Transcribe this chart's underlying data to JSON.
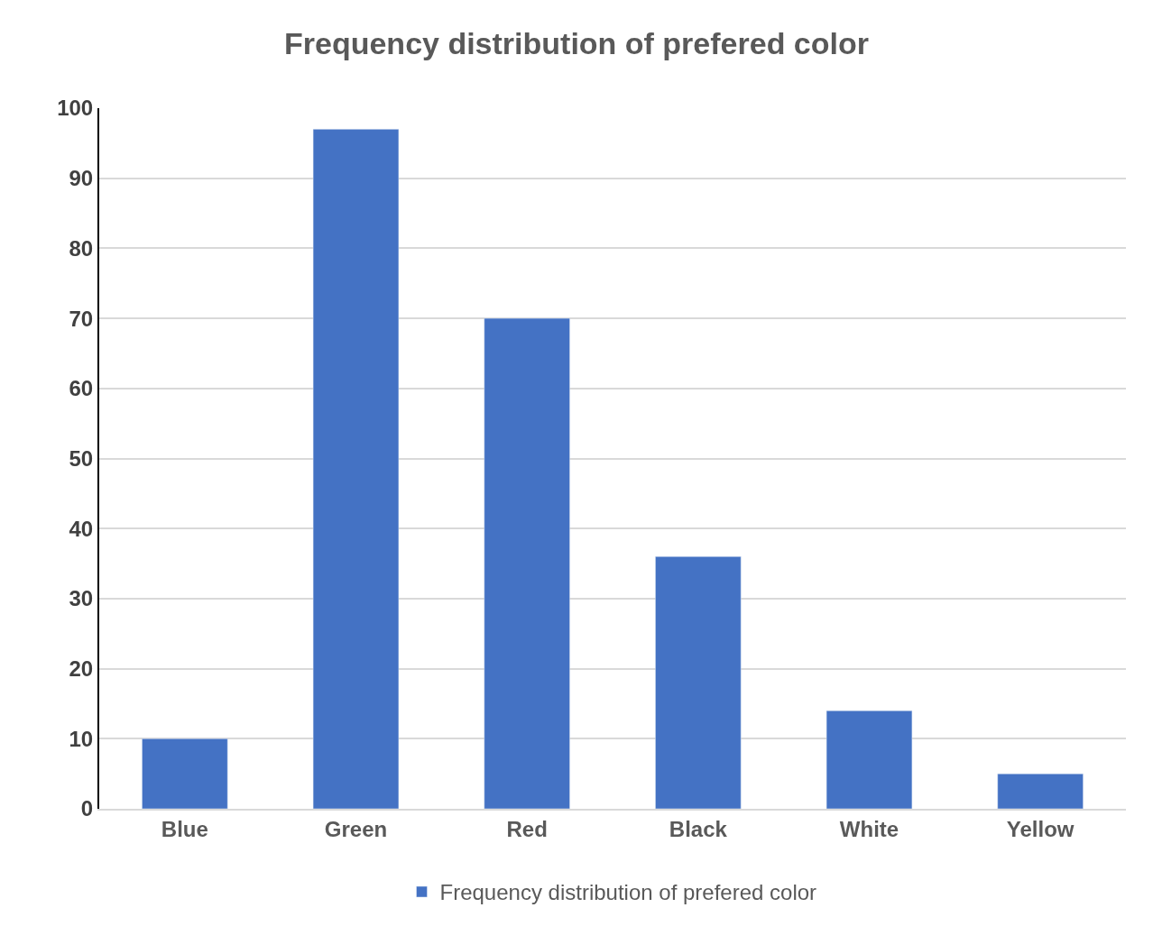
{
  "chart_data": {
    "type": "bar",
    "title": "Frequency distribution of prefered color",
    "categories": [
      "Blue",
      "Green",
      "Red",
      "Black",
      "White",
      "Yellow"
    ],
    "series": [
      {
        "name": "Frequency distribution of prefered color",
        "color": "#4472c4",
        "values": [
          10,
          97,
          70,
          36,
          14,
          5
        ]
      }
    ],
    "ylim": [
      0,
      100
    ],
    "yticks": [
      0,
      10,
      20,
      30,
      40,
      50,
      60,
      70,
      80,
      90,
      100
    ],
    "grid": "y",
    "legend": "bottom"
  }
}
